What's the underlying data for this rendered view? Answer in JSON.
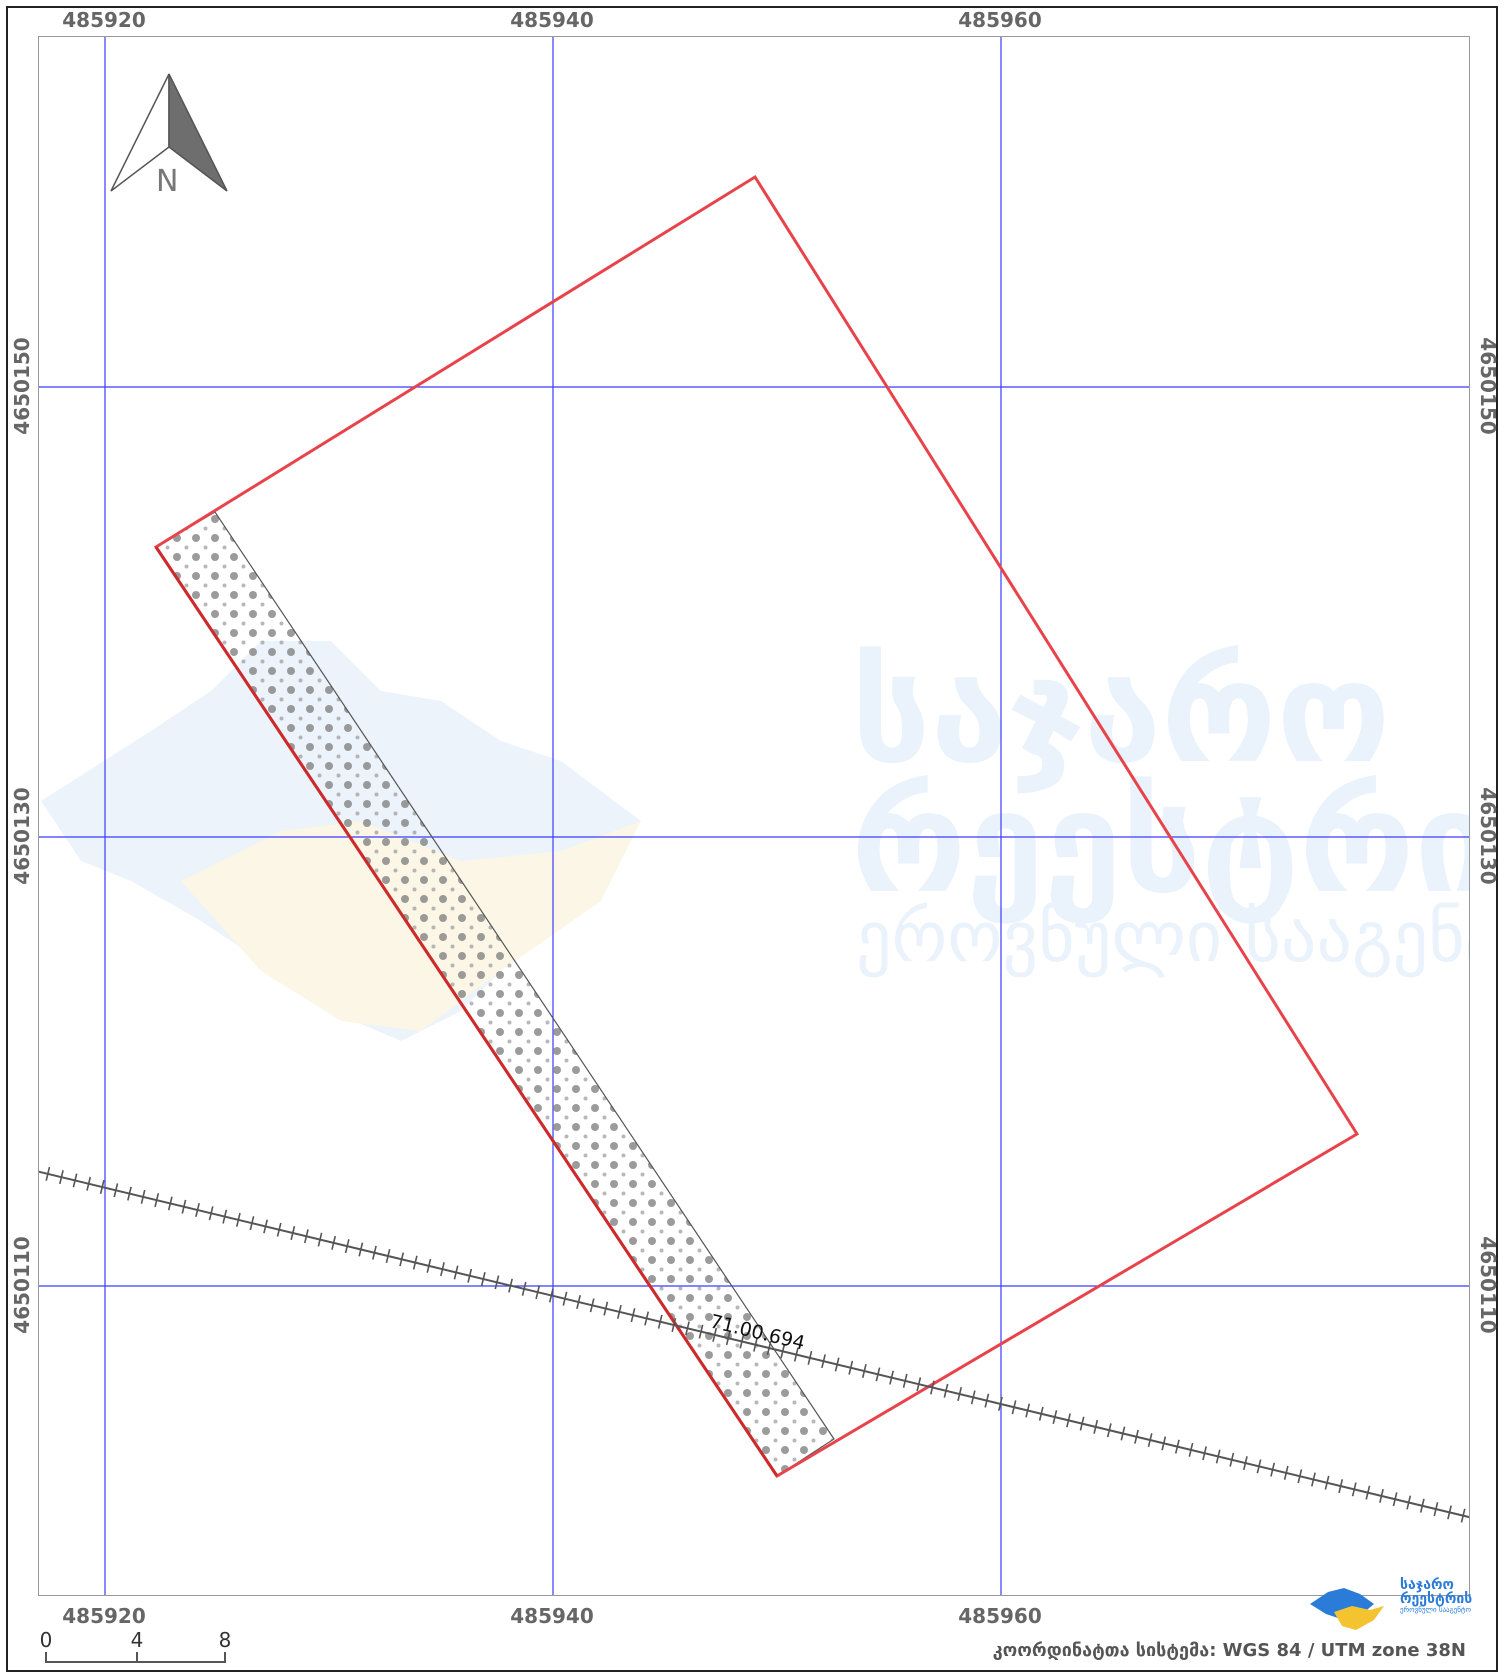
{
  "map": {
    "grid": {
      "x_ticks": [
        "485920",
        "485940",
        "485960"
      ],
      "y_ticks": [
        "4650150",
        "4650130",
        "4650110"
      ]
    },
    "parcel_label": "71.00.694",
    "north_label": "N",
    "scale": {
      "labels": [
        "0",
        "4",
        "8"
      ]
    },
    "crs_text": "კოორდინატთა სისტემა: WGS 84 / UTM zone 38N",
    "watermark_lines": [
      "საჯარო",
      "რეესტრის",
      "ეროვნული სააგენტო"
    ],
    "logo_lines": [
      "საჯარო",
      "რეესტრის",
      "ეროვნული სააგენტო"
    ],
    "colors": {
      "grid": "#3b3bff",
      "parcel_outline": "#e8434a",
      "parcel_outline_dark": "#cc2b2b",
      "railway": "#555555",
      "watermark": "#eaf2fb",
      "logo_blue": "#2b7bd8",
      "logo_yellow": "#f4c430"
    }
  }
}
